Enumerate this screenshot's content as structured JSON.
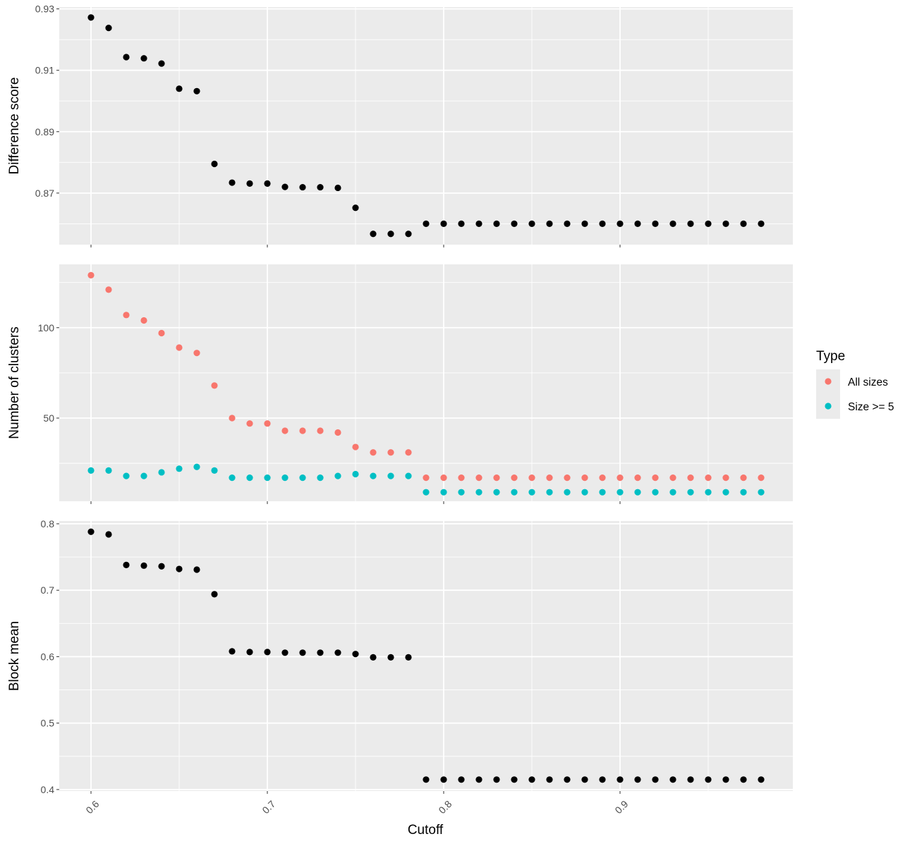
{
  "chart_data": {
    "type": "scatter",
    "xlabel": "Cutoff",
    "xlim": [
      0.582,
      0.998
    ],
    "x_ticks": [
      0.6,
      0.7,
      0.8,
      0.9
    ],
    "x_tick_labels": [
      "0.6",
      "0.7",
      "0.8",
      "0.9"
    ],
    "x": [
      0.6,
      0.61,
      0.62,
      0.63,
      0.64,
      0.65,
      0.66,
      0.67,
      0.68,
      0.69,
      0.7,
      0.71,
      0.72,
      0.73,
      0.74,
      0.75,
      0.76,
      0.77,
      0.78,
      0.79,
      0.8,
      0.81,
      0.82,
      0.83,
      0.84,
      0.85,
      0.86,
      0.87,
      0.88,
      0.89,
      0.9,
      0.91,
      0.92,
      0.93,
      0.94,
      0.95,
      0.96,
      0.97,
      0.98
    ],
    "grid": true,
    "panels": [
      {
        "ylabel": "Difference score",
        "ylim": [
          0.8532,
          0.9306
        ],
        "y_ticks": [
          0.87,
          0.89,
          0.91,
          0.93
        ],
        "y_tick_labels": [
          "0.87",
          "0.89",
          "0.91",
          "0.93"
        ],
        "series": [
          {
            "color": "#000000",
            "values": [
              0.9272,
              0.9238,
              0.9143,
              0.9139,
              0.9122,
              0.904,
              0.9032,
              0.8795,
              0.8734,
              0.8731,
              0.8731,
              0.872,
              0.8719,
              0.8719,
              0.8717,
              0.8652,
              0.8567,
              0.8567,
              0.8567,
              0.86,
              0.86,
              0.86,
              0.86,
              0.86,
              0.86,
              0.86,
              0.86,
              0.86,
              0.86,
              0.86,
              0.86,
              0.86,
              0.86,
              0.86,
              0.86,
              0.86,
              0.86,
              0.86,
              0.86
            ]
          }
        ]
      },
      {
        "ylabel": "Number of clusters",
        "ylim": [
          4,
          135
        ],
        "y_ticks": [
          50,
          100
        ],
        "y_tick_labels": [
          "50",
          "100"
        ],
        "series": [
          {
            "name": "All sizes",
            "color": "#F8766D",
            "values": [
              129,
              121,
              107,
              104,
              97,
              89,
              86,
              68,
              50,
              47,
              47,
              43,
              43,
              43,
              42,
              34,
              31,
              31,
              31,
              17,
              17,
              17,
              17,
              17,
              17,
              17,
              17,
              17,
              17,
              17,
              17,
              17,
              17,
              17,
              17,
              17,
              17,
              17,
              17
            ]
          },
          {
            "name": "Size >= 5",
            "color": "#00BFC4",
            "values": [
              21,
              21,
              18,
              18,
              20,
              22,
              23,
              21,
              17,
              17,
              17,
              17,
              17,
              17,
              18,
              19,
              18,
              18,
              18,
              9,
              9,
              9,
              9,
              9,
              9,
              9,
              9,
              9,
              9,
              9,
              9,
              9,
              9,
              9,
              9,
              9,
              9,
              9,
              9
            ]
          }
        ]
      },
      {
        "ylabel": "Block mean",
        "ylim": [
          0.3978,
          0.8042
        ],
        "y_ticks": [
          0.4,
          0.5,
          0.6,
          0.7,
          0.8
        ],
        "y_tick_labels": [
          "0.4",
          "0.5",
          "0.6",
          "0.7",
          "0.8"
        ],
        "series": [
          {
            "color": "#000000",
            "values": [
              0.788,
              0.784,
              0.738,
              0.737,
              0.736,
              0.732,
              0.731,
              0.694,
              0.608,
              0.607,
              0.607,
              0.606,
              0.606,
              0.606,
              0.606,
              0.604,
              0.599,
              0.599,
              0.599,
              0.415,
              0.415,
              0.415,
              0.415,
              0.415,
              0.415,
              0.415,
              0.415,
              0.415,
              0.415,
              0.415,
              0.415,
              0.415,
              0.415,
              0.415,
              0.415,
              0.415,
              0.415,
              0.415,
              0.415
            ]
          }
        ]
      }
    ],
    "legend": {
      "title": "Type",
      "placement": "right",
      "entries": [
        {
          "label": "All sizes",
          "color": "#F8766D"
        },
        {
          "label": "Size >= 5",
          "color": "#00BFC4"
        }
      ]
    }
  }
}
